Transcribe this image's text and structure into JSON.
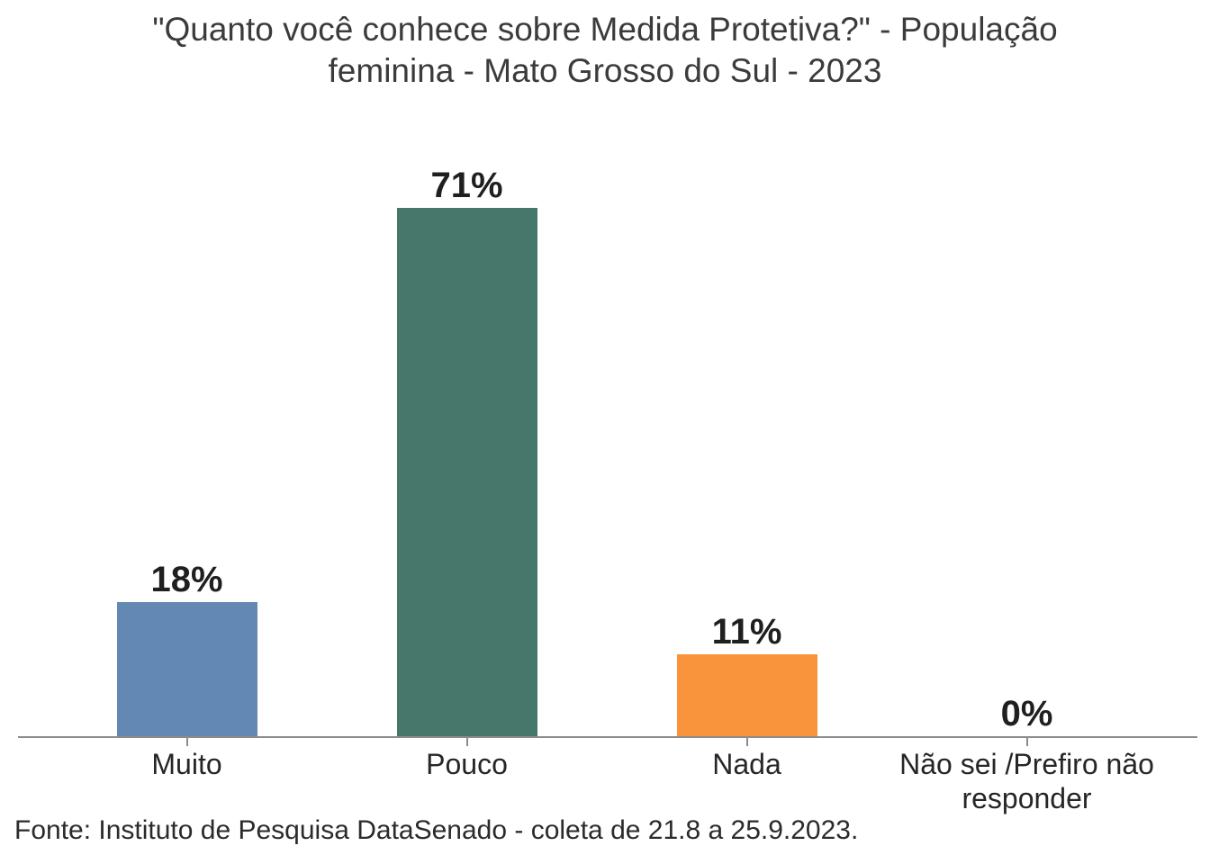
{
  "chart_data": {
    "type": "bar",
    "title": "\"Quanto você conhece sobre Medida Protetiva?\" - População feminina - Mato Grosso do Sul - 2023",
    "source_note": "Fonte: Instituto de Pesquisa DataSenado - coleta de 21.8 a 25.9.2023.",
    "categories": [
      "Muito",
      "Pouco",
      "Nada",
      "Não sei /Prefiro não responder"
    ],
    "values": [
      18,
      71,
      11,
      0
    ],
    "value_labels": [
      "18%",
      "71%",
      "11%",
      "0%"
    ],
    "bar_colors": [
      "#6388B3",
      "#47766A",
      "#F9933C",
      null
    ],
    "xlabel": "",
    "ylabel": "",
    "ylim": [
      0,
      85
    ],
    "grid": false,
    "legend": false,
    "y_axis_visible": false,
    "axis_line_color": "#8C8C8C",
    "text_colors": {
      "title": "#3B3B3B",
      "value_label": "#1F1F1F",
      "category_label": "#262626",
      "source": "#2B2B2B"
    }
  }
}
